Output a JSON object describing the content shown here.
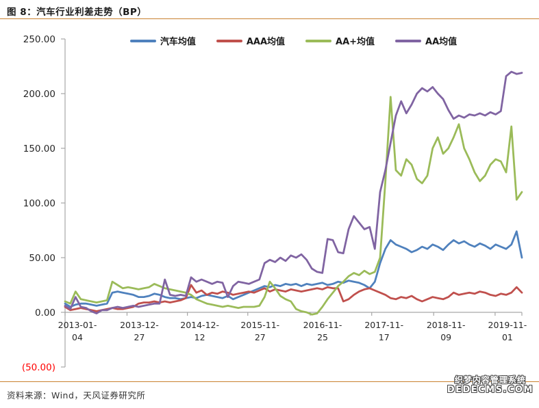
{
  "page": {
    "title": "图 8：汽车行业利差走势（BP）",
    "source": "资料来源：Wind，天风证券研究所",
    "watermark_line1": "织梦内容管理系统",
    "watermark_line2": "DEDECMS.COM"
  },
  "colors": {
    "divider_orange": "#c9802e",
    "axis_gray": "#a6a6a6",
    "label_dark": "#262626",
    "negative_tick_red": "#ff0000"
  },
  "chart_data": {
    "type": "line",
    "title": "图 8：汽车行业利差走势（BP）",
    "ylabel": "",
    "xlabel": "",
    "ylim": [
      -50,
      250
    ],
    "grid": false,
    "legend_position": "top",
    "x_unit": "months_since_2013-01",
    "months_total": 87,
    "y_ticks": [
      {
        "value": 250,
        "label": "250.00",
        "color": "#262626"
      },
      {
        "value": 200,
        "label": "200.00",
        "color": "#262626"
      },
      {
        "value": 150,
        "label": "150.00",
        "color": "#262626"
      },
      {
        "value": 100,
        "label": "100.00",
        "color": "#262626"
      },
      {
        "value": 50,
        "label": "50.00",
        "color": "#262626"
      },
      {
        "value": 0,
        "label": "0.00",
        "color": "#262626"
      },
      {
        "value": -50,
        "label": "(50.00)",
        "color": "#ff0000"
      }
    ],
    "x_ticks": [
      {
        "label": "2013-01-04",
        "month": 0
      },
      {
        "label": "2013-12-27",
        "month": 11.8
      },
      {
        "label": "2014-12-12",
        "month": 23.3
      },
      {
        "label": "2015-11-27",
        "month": 34.8
      },
      {
        "label": "2016-11-25",
        "month": 46.7
      },
      {
        "label": "2017-11-17",
        "month": 58.4
      },
      {
        "label": "2018-11-09",
        "month": 70.2
      },
      {
        "label": "2019-11-01",
        "month": 81.9
      }
    ],
    "series": [
      {
        "name": "汽车均值",
        "color": "#4f81bd",
        "values": [
          8,
          5,
          7,
          8,
          8,
          7,
          6,
          7,
          8,
          18,
          19,
          18,
          17,
          16,
          14,
          14,
          15,
          17,
          16,
          14,
          13,
          13,
          12,
          13,
          14,
          13,
          15,
          16,
          15,
          14,
          13,
          15,
          12,
          14,
          16,
          18,
          20,
          22,
          24,
          23,
          25,
          24,
          26,
          25,
          26,
          24,
          26,
          25,
          26,
          27,
          25,
          26,
          28,
          27,
          29,
          28,
          27,
          25,
          22,
          28,
          45,
          58,
          66,
          62,
          60,
          58,
          55,
          57,
          60,
          58,
          62,
          60,
          57,
          62,
          66,
          63,
          65,
          62,
          60,
          63,
          61,
          58,
          62,
          60,
          58,
          62,
          74,
          50
        ]
      },
      {
        "name": "AAA均值",
        "color": "#c0504d",
        "values": [
          5,
          2,
          3,
          4,
          3,
          2,
          1,
          2,
          3,
          4,
          3,
          3,
          4,
          5,
          8,
          9,
          9,
          10,
          9,
          10,
          9,
          10,
          11,
          13,
          25,
          18,
          20,
          16,
          18,
          17,
          19,
          18,
          16,
          17,
          18,
          19,
          18,
          20,
          22,
          19,
          21,
          20,
          19,
          21,
          20,
          19,
          20,
          21,
          22,
          21,
          23,
          22,
          22,
          10,
          12,
          16,
          19,
          21,
          22,
          20,
          18,
          16,
          13,
          12,
          14,
          13,
          15,
          12,
          10,
          12,
          14,
          13,
          12,
          14,
          18,
          16,
          17,
          18,
          17,
          19,
          18,
          16,
          15,
          17,
          16,
          18,
          23,
          18
        ]
      },
      {
        "name": "AA+均值",
        "color": "#9bbb59",
        "values": [
          10,
          8,
          19,
          12,
          11,
          10,
          9,
          10,
          11,
          28,
          25,
          22,
          23,
          22,
          21,
          22,
          23,
          26,
          24,
          22,
          21,
          20,
          19,
          18,
          16,
          12,
          10,
          8,
          7,
          6,
          5,
          6,
          5,
          4,
          5,
          5,
          5,
          6,
          14,
          28,
          22,
          15,
          12,
          10,
          3,
          1,
          0,
          -2,
          -1,
          5,
          12,
          18,
          24,
          28,
          33,
          36,
          34,
          38,
          35,
          37,
          50,
          120,
          197,
          130,
          125,
          140,
          135,
          122,
          118,
          125,
          150,
          160,
          145,
          150,
          160,
          172,
          150,
          140,
          128,
          120,
          125,
          135,
          140,
          138,
          128,
          170,
          103,
          110
        ]
      },
      {
        "name": "AA均值",
        "color": "#8064a2",
        "values": [
          6,
          3,
          14,
          5,
          4,
          1,
          -1,
          2,
          2,
          4,
          5,
          4,
          5,
          6,
          5,
          6,
          7,
          8,
          8,
          30,
          16,
          15,
          16,
          15,
          32,
          28,
          30,
          28,
          26,
          28,
          27,
          14,
          24,
          28,
          27,
          26,
          28,
          30,
          45,
          48,
          46,
          50,
          47,
          52,
          50,
          53,
          48,
          40,
          37,
          36,
          67,
          66,
          55,
          54,
          76,
          88,
          82,
          76,
          78,
          58,
          110,
          130,
          155,
          180,
          193,
          182,
          190,
          200,
          205,
          202,
          206,
          200,
          195,
          185,
          177,
          180,
          178,
          181,
          180,
          182,
          180,
          183,
          181,
          184,
          216,
          220,
          218,
          219
        ]
      }
    ]
  }
}
